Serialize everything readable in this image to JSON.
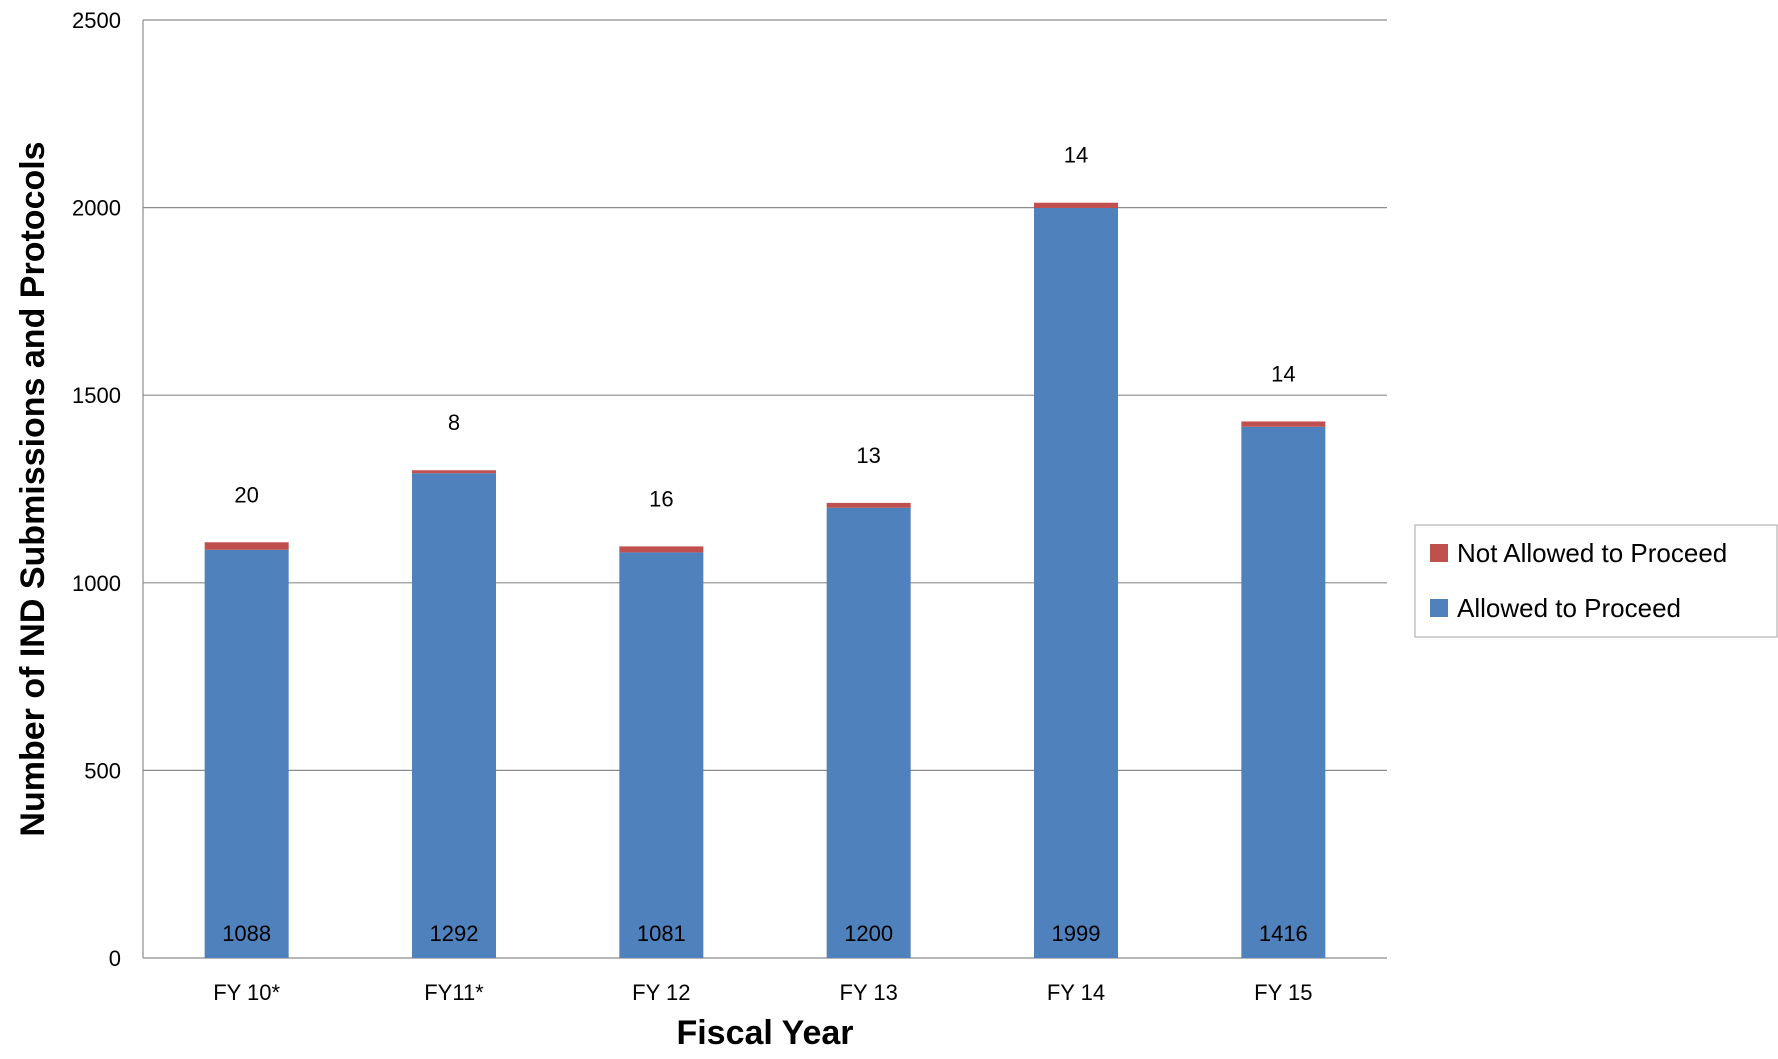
{
  "chart_data": {
    "type": "bar",
    "stacked": true,
    "categories": [
      "FY 10*",
      "FY11*",
      "FY 12",
      "FY 13",
      "FY 14",
      "FY 15"
    ],
    "series": [
      {
        "name": "Allowed to Proceed",
        "values": [
          1088,
          1292,
          1081,
          1200,
          1999,
          1416
        ],
        "color": "#4F81BD"
      },
      {
        "name": "Not Allowed to Proceed",
        "values": [
          20,
          8,
          16,
          13,
          14,
          14
        ],
        "color": "#C0504D"
      }
    ],
    "title": "",
    "xlabel": "Fiscal Year",
    "ylabel": "Number of IND Submissions and Protocols",
    "ylim": [
      0,
      2500
    ],
    "yticks": [
      0,
      500,
      1000,
      1500,
      2000,
      2500
    ],
    "grid": true,
    "legend_position": "right",
    "legend_order": [
      "Not Allowed to Proceed",
      "Allowed to Proceed"
    ]
  }
}
